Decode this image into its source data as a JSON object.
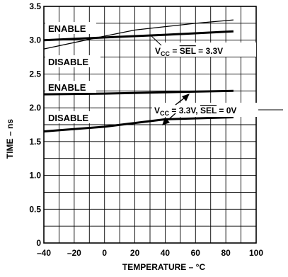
{
  "chart_data": {
    "type": "line",
    "xlabel": "TEMPERATURE – °C",
    "ylabel": "TIME – ns",
    "xlim": [
      -40,
      100
    ],
    "ylim": [
      0,
      3.5
    ],
    "x_ticks": [
      "–40",
      "–20",
      "0",
      "20",
      "40",
      "60",
      "80",
      "100"
    ],
    "y_ticks": [
      "0",
      "0.5",
      "1.0",
      "1.5",
      "2.0",
      "2.5",
      "3.0",
      "3.5"
    ],
    "grid": true,
    "series": [
      {
        "name": "ENABLE",
        "group": "VCC = SEL = 3.3V",
        "weight": "heavy",
        "x": [
          -40,
          0,
          40,
          85
        ],
        "y": [
          3.0,
          3.04,
          3.08,
          3.13
        ]
      },
      {
        "name": "DISABLE",
        "group": "VCC = SEL = 3.3V",
        "weight": "light",
        "x": [
          -40,
          0,
          20,
          40,
          60,
          85
        ],
        "y": [
          2.87,
          3.06,
          3.15,
          3.2,
          3.25,
          3.3
        ]
      },
      {
        "name": "ENABLE",
        "group": "VCC = 3.3V, SEL = 0V",
        "weight": "heavy",
        "x": [
          -40,
          0,
          40,
          85
        ],
        "y": [
          2.2,
          2.21,
          2.23,
          2.25
        ]
      },
      {
        "name": "DISABLE",
        "group": "VCC = 3.3V, SEL = 0V",
        "weight": "heavy",
        "x": [
          -40,
          0,
          40,
          85
        ],
        "y": [
          1.65,
          1.72,
          1.83,
          1.86
        ]
      }
    ],
    "curve_labels": [
      "ENABLE",
      "DISABLE",
      "ENABLE",
      "DISABLE"
    ],
    "annotations": {
      "upper": {
        "v": "V",
        "sub": "CC",
        "eq": " = ",
        "sel": "SEL",
        "rest": " = 3.3V"
      },
      "lower": {
        "v": "V",
        "sub": "CC",
        "eq": " = 3.3V, ",
        "sel": "SEL",
        "rest": " = 0V"
      }
    }
  }
}
